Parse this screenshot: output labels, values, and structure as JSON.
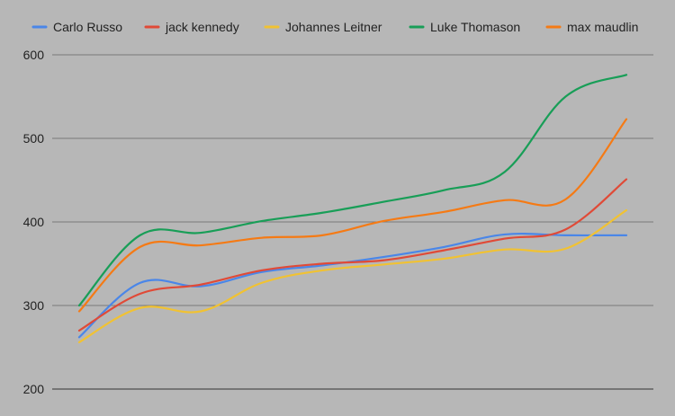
{
  "chart_data": {
    "type": "line",
    "title": "",
    "xlabel": "",
    "ylabel": "",
    "ylim": [
      200,
      600
    ],
    "yticks": [
      "200",
      "300",
      "400",
      "500",
      "600"
    ],
    "grid": true,
    "legend_position": "top",
    "background": "#b7b7b7",
    "x": [
      1,
      2,
      3,
      4,
      5,
      6,
      7,
      8,
      9,
      10
    ],
    "series": [
      {
        "name": "Carlo Russo",
        "color": "#4a86e8",
        "values": [
          262,
          327,
          323,
          340,
          348,
          358,
          370,
          385,
          384,
          384
        ]
      },
      {
        "name": "jack kennedy",
        "color": "#e04a37",
        "values": [
          270,
          314,
          325,
          342,
          350,
          354,
          366,
          380,
          391,
          451
        ]
      },
      {
        "name": "Johannes Leitner",
        "color": "#f1c232",
        "values": [
          256,
          297,
          293,
          327,
          342,
          349,
          356,
          367,
          368,
          414
        ]
      },
      {
        "name": "Luke Thomason",
        "color": "#189e57",
        "values": [
          300,
          384,
          387,
          401,
          411,
          424,
          438,
          460,
          550,
          576
        ]
      },
      {
        "name": "max maudlin",
        "color": "#f57a14",
        "values": [
          293,
          370,
          372,
          381,
          384,
          401,
          412,
          426,
          427,
          523
        ]
      }
    ]
  }
}
